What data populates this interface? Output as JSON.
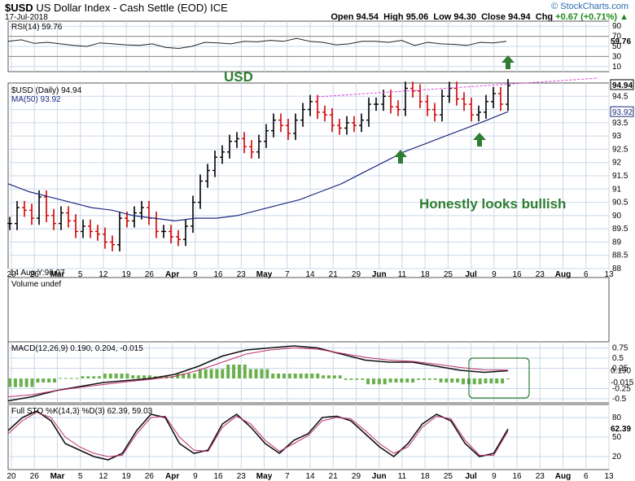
{
  "header": {
    "symbol": "$USD",
    "name": "US Dollar Index - Cash Settle (EOD)",
    "exchange": "ICE",
    "date": "17-Jul-2018",
    "watermark": "© StockCharts.com",
    "open_label": "Open",
    "open": "94.54",
    "high_label": "High",
    "high": "95.06",
    "low_label": "Low",
    "low": "94.30",
    "close_label": "Close",
    "close": "94.94",
    "chg_label": "Chg",
    "chg": "+0.67 (+0.71%)",
    "chg_color": "#1a8a1a",
    "arrow_icon": "up-triangle-icon"
  },
  "panels": {
    "rsi_label": "RSI(14)",
    "rsi_value": "59.76",
    "price_label": "$USD (Daily)",
    "price_value": "94.94",
    "ma_label": "MA(50)",
    "ma_value": "93.92",
    "low_marker": "14 Aug Y:90.07",
    "volume_label": "Volume undef",
    "macd_label": "MACD(12,26,9)",
    "macd_values": [
      "0.190",
      "0.204",
      "-0.015"
    ],
    "sto_label": "Full STO %K(14,3) %D(3)",
    "sto_values": [
      "62.39",
      "59.03"
    ]
  },
  "annotations": {
    "usd": "USD",
    "bullish": "Honestly looks bullish"
  },
  "colors": {
    "up_bar": "#000000",
    "down_bar": "#d40000",
    "ma": "#1f2a80",
    "trendline": "#e040e0",
    "annotation_green": "#2e7d32",
    "macd_hist": "#6ab04c",
    "macd_signal": "#c0306a"
  },
  "chart_data": [
    {
      "type": "line",
      "title": "RSI(14)",
      "ylim": [
        0,
        100
      ],
      "yticks": [
        10,
        30,
        50,
        70,
        90
      ],
      "last_value": 59.76,
      "series": [
        {
          "name": "RSI(14)",
          "values": [
            60,
            63,
            56,
            58,
            55,
            52,
            50,
            57,
            55,
            53,
            52,
            55,
            48,
            46,
            50,
            58,
            57,
            55,
            60,
            59,
            62,
            60,
            66,
            60,
            58,
            53,
            55,
            60,
            60,
            58,
            62,
            52,
            58,
            55,
            54,
            52,
            58,
            57,
            60
          ]
        }
      ]
    },
    {
      "type": "line",
      "title": "$USD (Daily)",
      "ylim": [
        88.0,
        95.0
      ],
      "yticks": [
        88.0,
        88.5,
        89.0,
        89.5,
        90.0,
        90.5,
        91.0,
        91.5,
        92.0,
        92.5,
        93.0,
        93.5,
        94.0,
        94.5
      ],
      "xticks": [
        "20",
        "26",
        "Mar",
        "5",
        "12",
        "19",
        "26",
        "Apr",
        "9",
        "16",
        "23",
        "May",
        "7",
        "14",
        "21",
        "29",
        "Jun",
        "11",
        "18",
        "25",
        "Jul",
        "9",
        "16",
        "23",
        "Aug",
        "6",
        "13"
      ],
      "last_close": 94.94,
      "ma50_last": 93.92,
      "series": [
        {
          "name": "$USD (Daily)",
          "values": [
            89.7,
            90.3,
            90.2,
            89.9,
            90.7,
            90.0,
            89.7,
            90.1,
            89.8,
            89.4,
            89.6,
            89.4,
            89.3,
            89.0,
            88.9,
            89.9,
            89.8,
            90.1,
            90.3,
            89.9,
            89.4,
            89.4,
            89.2,
            89.1,
            89.6,
            90.5,
            91.3,
            91.7,
            92.2,
            92.4,
            92.8,
            92.9,
            92.6,
            92.4,
            92.8,
            93.2,
            93.6,
            93.4,
            93.1,
            93.6,
            94.0,
            94.3,
            93.9,
            93.8,
            93.4,
            93.3,
            93.5,
            93.4,
            93.6,
            94.2,
            94.2,
            94.5,
            94.1,
            94.0,
            94.8,
            94.7,
            94.3,
            94.0,
            93.8,
            94.5,
            94.8,
            94.4,
            94.2,
            93.8,
            93.9,
            94.3,
            94.6,
            94.2,
            94.9
          ]
        },
        {
          "name": "MA(50)",
          "values": [
            91.2,
            90.9,
            90.7,
            90.5,
            90.3,
            90.2,
            90.0,
            89.9,
            89.8,
            89.9,
            89.9,
            90.0,
            90.2,
            90.4,
            90.6,
            90.9,
            91.2,
            91.6,
            92.0,
            92.4,
            92.7,
            93.0,
            93.3,
            93.6,
            93.92
          ]
        }
      ]
    },
    {
      "type": "line",
      "title": "MACD(12,26,9)",
      "ylim": [
        -0.6,
        0.9
      ],
      "yticks": [
        0.75,
        0.5,
        0.25,
        -0.25,
        -0.5
      ],
      "series": [
        {
          "name": "MACD",
          "values": [
            -0.55,
            -0.45,
            -0.3,
            -0.2,
            -0.1,
            -0.05,
            0.0,
            0.1,
            0.3,
            0.55,
            0.7,
            0.75,
            0.8,
            0.75,
            0.6,
            0.45,
            0.4,
            0.4,
            0.3,
            0.2,
            0.15,
            0.19
          ]
        },
        {
          "name": "Signal",
          "values": [
            -0.45,
            -0.4,
            -0.3,
            -0.22,
            -0.15,
            -0.08,
            -0.02,
            0.05,
            0.2,
            0.4,
            0.6,
            0.7,
            0.75,
            0.72,
            0.62,
            0.52,
            0.45,
            0.42,
            0.35,
            0.27,
            0.21,
            0.204
          ]
        }
      ]
    },
    {
      "type": "line",
      "title": "Full STO %K(14,3) %D(3)",
      "ylim": [
        0,
        100
      ],
      "yticks": [
        80,
        50,
        20
      ],
      "series": [
        {
          "name": "%K",
          "values": [
            60,
            80,
            90,
            75,
            40,
            30,
            20,
            15,
            25,
            60,
            85,
            80,
            40,
            25,
            30,
            70,
            85,
            65,
            40,
            25,
            45,
            55,
            80,
            82,
            75,
            55,
            35,
            20,
            40,
            70,
            85,
            75,
            40,
            20,
            25,
            62.39
          ]
        },
        {
          "name": "%D",
          "values": [
            55,
            75,
            88,
            80,
            50,
            35,
            25,
            20,
            22,
            55,
            80,
            82,
            50,
            30,
            28,
            65,
            82,
            70,
            45,
            28,
            40,
            52,
            75,
            80,
            78,
            60,
            40,
            25,
            35,
            65,
            82,
            78,
            45,
            22,
            22,
            59.03
          ]
        }
      ]
    }
  ]
}
